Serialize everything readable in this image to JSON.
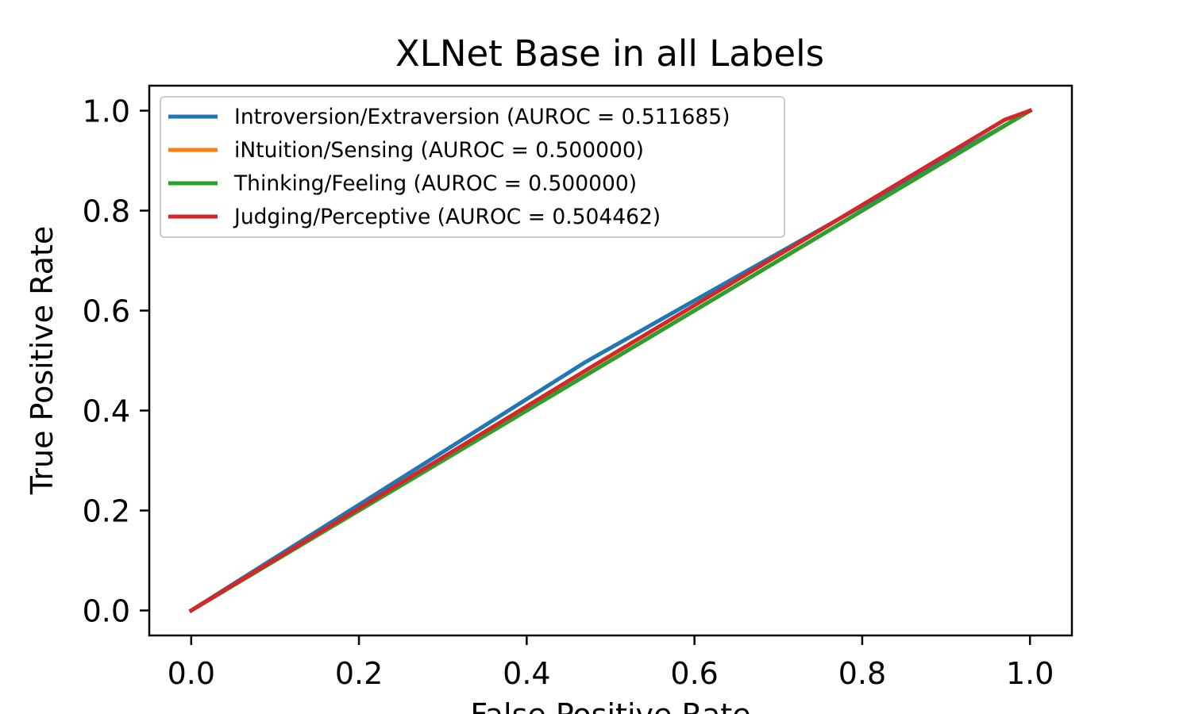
{
  "chart_data": {
    "type": "line",
    "title": "XLNet Base in all Labels",
    "xlabel": "False Positive Rate",
    "ylabel": "True Positive Rate",
    "xlim": [
      -0.05,
      1.05
    ],
    "ylim": [
      -0.05,
      1.05
    ],
    "xticks": [
      "0.0",
      "0.2",
      "0.4",
      "0.6",
      "0.8",
      "1.0"
    ],
    "yticks": [
      "0.0",
      "0.2",
      "0.4",
      "0.6",
      "0.8",
      "1.0"
    ],
    "grid": false,
    "legend_position": "upper-left",
    "series": [
      {
        "name": "Introversion/Extraversion (AUROC = 0.511685)",
        "color": "#1f77b4",
        "x": [
          0.0,
          0.47,
          0.98,
          1.0
        ],
        "y": [
          0.0,
          0.497,
          0.98,
          1.0
        ]
      },
      {
        "name": "iNtuition/Sensing (AUROC = 0.500000)",
        "color": "#ff7f0e",
        "x": [
          0.0,
          1.0
        ],
        "y": [
          0.0,
          1.0
        ]
      },
      {
        "name": "Thinking/Feeling (AUROC = 0.500000)",
        "color": "#2ca02c",
        "x": [
          0.0,
          1.0
        ],
        "y": [
          0.0,
          1.0
        ]
      },
      {
        "name": "Judging/Perceptive (AUROC = 0.504462)",
        "color": "#d62728",
        "x": [
          0.0,
          0.47,
          0.97,
          1.0
        ],
        "y": [
          0.0,
          0.48,
          0.982,
          1.0
        ]
      }
    ]
  }
}
